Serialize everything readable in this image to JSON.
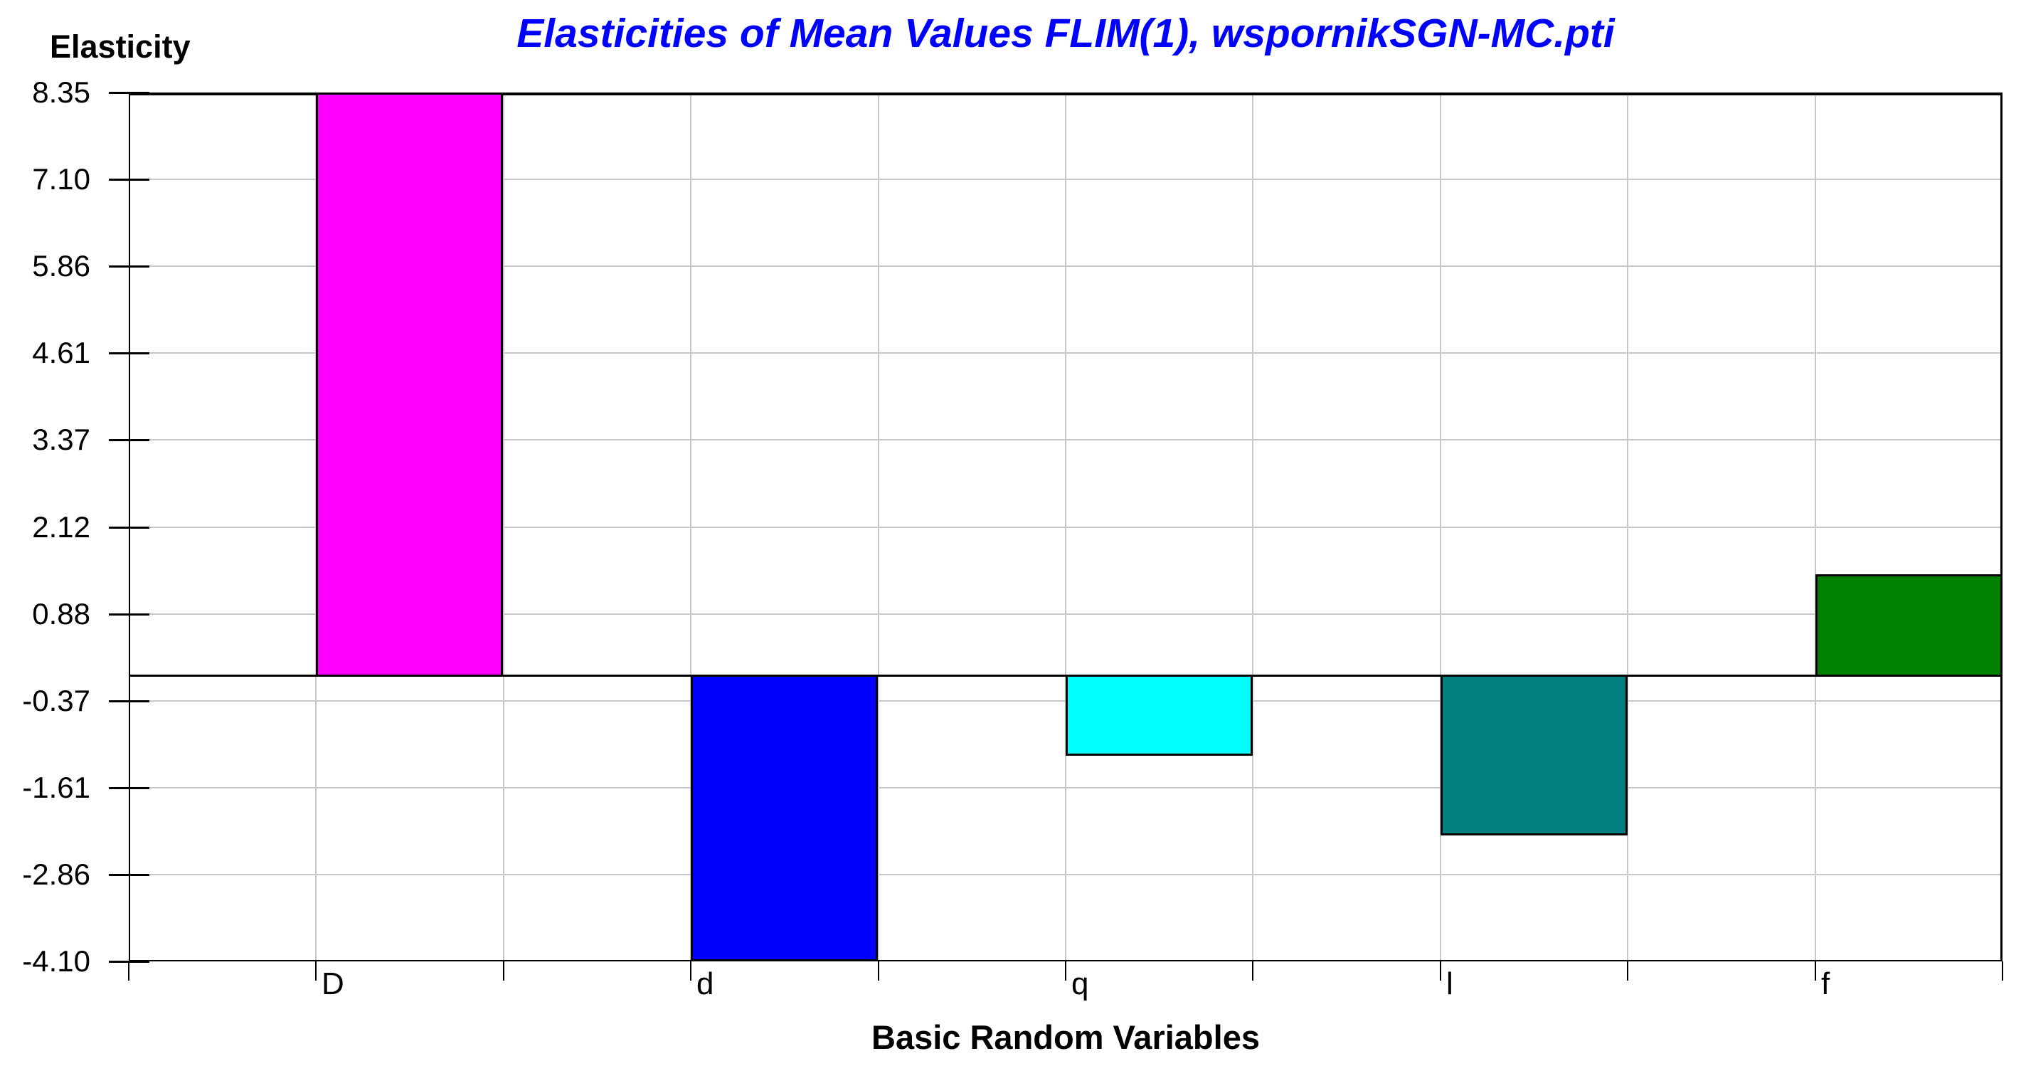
{
  "chart_data": {
    "type": "bar",
    "title": "Elasticities of Mean Values FLIM(1), wspornikSGN-MC.pti",
    "title_color": "#0000FF",
    "xlabel": "Basic Random Variables",
    "ylabel": "Elasticity",
    "categories": [
      "D",
      "d",
      "q",
      "l",
      "f"
    ],
    "values": [
      8.35,
      -4.1,
      -1.15,
      -2.3,
      1.45
    ],
    "bar_colors": [
      "#FF00FF",
      "#0000FF",
      "#00FFFF",
      "#008080",
      "#008000"
    ],
    "ytick_labels": [
      "8.35",
      "7.10",
      "5.86",
      "4.61",
      "3.37",
      "2.12",
      "0.88",
      "-0.37",
      "-1.61",
      "-2.86",
      "-4.10"
    ],
    "ytick_values": [
      8.35,
      7.105,
      5.86,
      4.615,
      3.37,
      2.125,
      0.88,
      -0.365,
      -1.61,
      -2.855,
      -4.1
    ],
    "ylim": [
      -4.1,
      8.35
    ],
    "zero_line_value": 0,
    "grid": true,
    "grid_color": "#C8C8C8",
    "axis_color": "#000000",
    "background_color": "#FFFFFF",
    "legend": false
  }
}
